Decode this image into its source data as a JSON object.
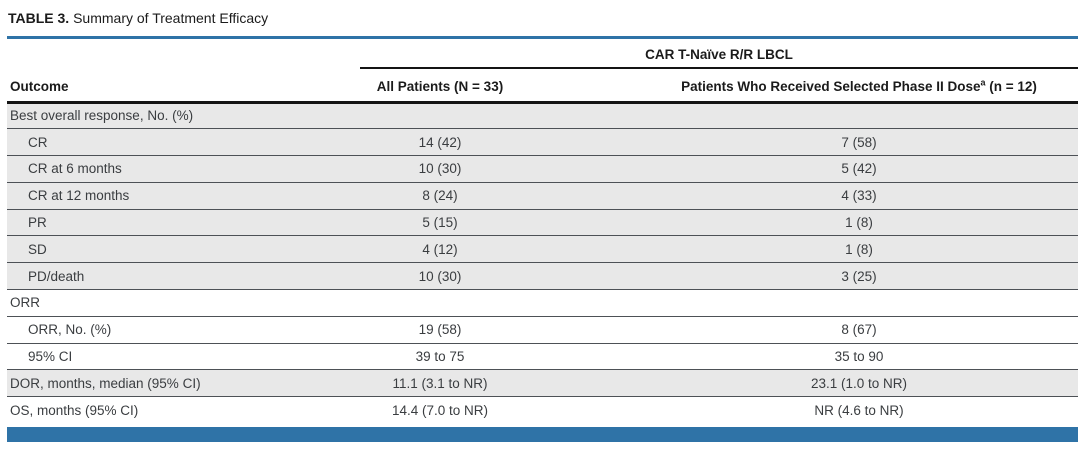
{
  "title": {
    "label": "TABLE 3.",
    "text": "Summary of Treatment Efficacy"
  },
  "table": {
    "spanner": "CAR T-Naïve R/R LBCL",
    "columns": {
      "outcome": "Outcome",
      "all_patients": "All Patients (N = 33)",
      "phase2_prefix": "Patients Who Received Selected Phase II Dose",
      "phase2_sup": "a",
      "phase2_suffix": " (n = 12)"
    },
    "rows": [
      {
        "outcome": "Best overall response, No. (%)",
        "all": "",
        "p2": "",
        "indent": false,
        "shaded": true
      },
      {
        "outcome": "CR",
        "all": "14 (42)",
        "p2": "7 (58)",
        "indent": true,
        "shaded": true
      },
      {
        "outcome": "CR at 6 months",
        "all": "10 (30)",
        "p2": "5 (42)",
        "indent": true,
        "shaded": true
      },
      {
        "outcome": "CR at 12 months",
        "all": "8 (24)",
        "p2": "4 (33)",
        "indent": true,
        "shaded": true
      },
      {
        "outcome": "PR",
        "all": "5 (15)",
        "p2": "1 (8)",
        "indent": true,
        "shaded": true
      },
      {
        "outcome": "SD",
        "all": "4 (12)",
        "p2": "1 (8)",
        "indent": true,
        "shaded": true
      },
      {
        "outcome": "PD/death",
        "all": "10 (30)",
        "p2": "3 (25)",
        "indent": true,
        "shaded": true
      },
      {
        "outcome": "ORR",
        "all": "",
        "p2": "",
        "indent": false,
        "shaded": false
      },
      {
        "outcome": "ORR, No. (%)",
        "all": "19 (58)",
        "p2": "8 (67)",
        "indent": true,
        "shaded": false
      },
      {
        "outcome": "95% CI",
        "all": "39 to 75",
        "p2": "35 to 90",
        "indent": true,
        "shaded": false
      },
      {
        "outcome": "DOR, months, median (95% CI)",
        "all": "11.1 (3.1 to NR)",
        "p2": "23.1 (1.0 to NR)",
        "indent": false,
        "shaded": true
      },
      {
        "outcome": "OS, months (95% CI)",
        "all": "14.4 (7.0 to NR)",
        "p2": "NR (4.6 to NR)",
        "indent": false,
        "shaded": false
      }
    ],
    "colors": {
      "accent_blue": "#2f73a7",
      "row_shade": "#e8e8e8",
      "rule_dark": "#141414",
      "row_separator": "#4d5156"
    }
  }
}
